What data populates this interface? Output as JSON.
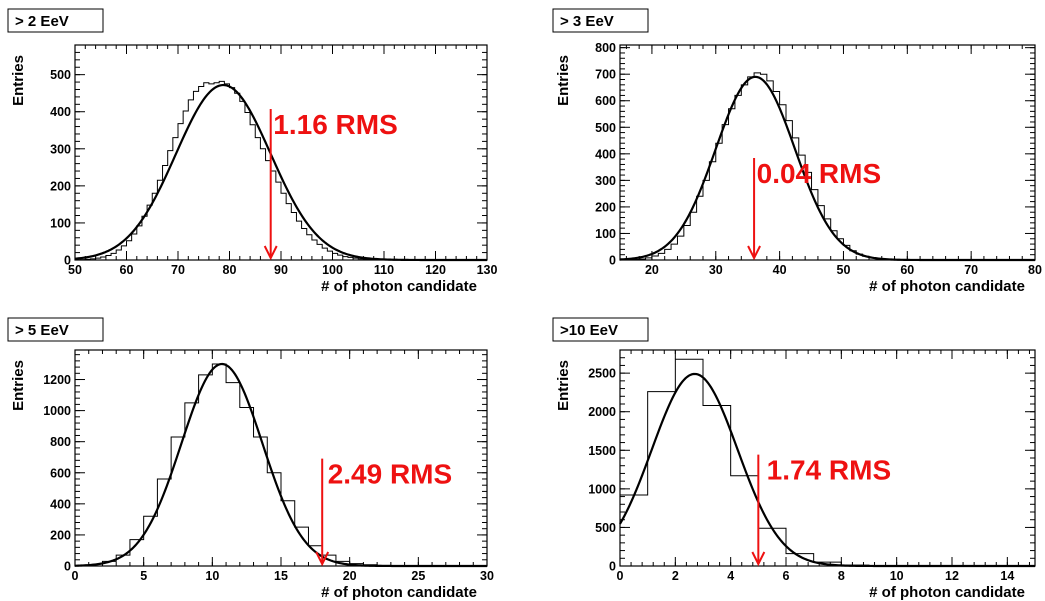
{
  "chart_data": [
    {
      "type": "bar",
      "title": "> 2 EeV",
      "xlabel": "# of photon candidate",
      "ylabel": "Entries",
      "xlim": [
        50,
        130
      ],
      "ylim": [
        0,
        580
      ],
      "xticks": [
        50,
        60,
        70,
        80,
        90,
        100,
        110,
        120,
        130
      ],
      "yticks": [
        0,
        100,
        200,
        300,
        400,
        500
      ],
      "bin_width": 1,
      "bins_x": [
        51,
        52,
        53,
        54,
        55,
        56,
        57,
        58,
        59,
        60,
        61,
        62,
        63,
        64,
        65,
        66,
        67,
        68,
        69,
        70,
        71,
        72,
        73,
        74,
        75,
        76,
        77,
        78,
        79,
        80,
        81,
        82,
        83,
        84,
        85,
        86,
        87,
        88,
        89,
        90,
        91,
        92,
        93,
        94,
        95,
        96,
        97,
        98,
        99,
        100,
        101,
        102,
        103,
        104,
        105,
        106,
        107,
        108,
        109,
        110
      ],
      "counts": [
        1,
        2,
        3,
        5,
        8,
        12,
        18,
        27,
        38,
        52,
        70,
        92,
        118,
        148,
        180,
        215,
        255,
        295,
        330,
        368,
        402,
        432,
        455,
        468,
        478,
        475,
        478,
        482,
        475,
        465,
        450,
        428,
        398,
        365,
        330,
        300,
        268,
        240,
        210,
        180,
        152,
        128,
        105,
        85,
        68,
        54,
        42,
        32,
        24,
        18,
        13,
        9,
        7,
        5,
        3,
        2,
        2,
        1,
        1,
        0
      ],
      "fit": {
        "mean": 78.8,
        "sigma": 9.2,
        "amplitude": 472
      },
      "marker_x": 88,
      "annotation": "1.16 RMS",
      "annotation_x": 88.5,
      "annotation_y": 340
    },
    {
      "type": "bar",
      "title": "> 3 EeV",
      "xlabel": "# of photon candidate",
      "ylabel": "Entries",
      "xlim": [
        15,
        80
      ],
      "ylim": [
        0,
        810
      ],
      "xticks": [
        20,
        30,
        40,
        50,
        60,
        70,
        80
      ],
      "yticks": [
        0,
        100,
        200,
        300,
        400,
        500,
        600,
        700,
        800
      ],
      "bin_width": 1,
      "bins_x": [
        17,
        18,
        19,
        20,
        21,
        22,
        23,
        24,
        25,
        26,
        27,
        28,
        29,
        30,
        31,
        32,
        33,
        34,
        35,
        36,
        37,
        38,
        39,
        40,
        41,
        42,
        43,
        44,
        45,
        46,
        47,
        48,
        49,
        50,
        51,
        52,
        53,
        54,
        55,
        56,
        57,
        58,
        59,
        60
      ],
      "counts": [
        2,
        4,
        8,
        15,
        25,
        40,
        60,
        90,
        130,
        180,
        240,
        300,
        370,
        440,
        510,
        570,
        620,
        660,
        690,
        705,
        700,
        675,
        635,
        585,
        525,
        460,
        395,
        330,
        265,
        205,
        155,
        110,
        80,
        55,
        35,
        22,
        14,
        8,
        5,
        3,
        2,
        1,
        1,
        0
      ],
      "fit": {
        "mean": 36.2,
        "sigma": 6.2,
        "amplitude": 690
      },
      "marker_x": 36,
      "annotation": "0.04 RMS",
      "annotation_x": 36.4,
      "annotation_y": 290
    },
    {
      "type": "bar",
      "title": "> 5 EeV",
      "xlabel": "# of photon candidate",
      "ylabel": "Entries",
      "xlim": [
        0,
        30
      ],
      "ylim": [
        0,
        1390
      ],
      "xticks": [
        0,
        5,
        10,
        15,
        20,
        25,
        30
      ],
      "yticks": [
        0,
        200,
        400,
        600,
        800,
        1000,
        1200
      ],
      "bin_width": 1,
      "bins_x": [
        2,
        3,
        4,
        5,
        6,
        7,
        8,
        9,
        10,
        11,
        12,
        13,
        14,
        15,
        16,
        17,
        18,
        19,
        20,
        21,
        22,
        23
      ],
      "counts": [
        30,
        70,
        170,
        320,
        560,
        830,
        1050,
        1230,
        1300,
        1180,
        1020,
        830,
        600,
        420,
        250,
        130,
        70,
        30,
        15,
        8,
        4,
        2
      ],
      "fit": {
        "mean": 10.7,
        "sigma": 2.95,
        "amplitude": 1300
      },
      "marker_x": 18,
      "annotation": "2.49 RMS",
      "annotation_x": 18.4,
      "annotation_y": 530
    },
    {
      "type": "bar",
      "title": ">10 EeV",
      "xlabel": "# of photon candidate",
      "ylabel": "Entries",
      "xlim": [
        0,
        15
      ],
      "ylim": [
        0,
        2800
      ],
      "xticks": [
        0,
        2,
        4,
        6,
        8,
        10,
        12,
        14
      ],
      "yticks": [
        0,
        500,
        1000,
        1500,
        2000,
        2500
      ],
      "bin_width": 1,
      "bins_x": [
        0,
        1,
        2,
        3,
        4,
        5,
        6,
        7,
        8,
        9
      ],
      "counts": [
        920,
        2260,
        2680,
        2080,
        1170,
        490,
        160,
        50,
        12,
        0
      ],
      "fit": {
        "mean": 2.7,
        "sigma": 1.55,
        "amplitude": 2490
      },
      "marker_x": 5,
      "annotation": "1.74 RMS",
      "annotation_x": 5.3,
      "annotation_y": 1120
    }
  ]
}
